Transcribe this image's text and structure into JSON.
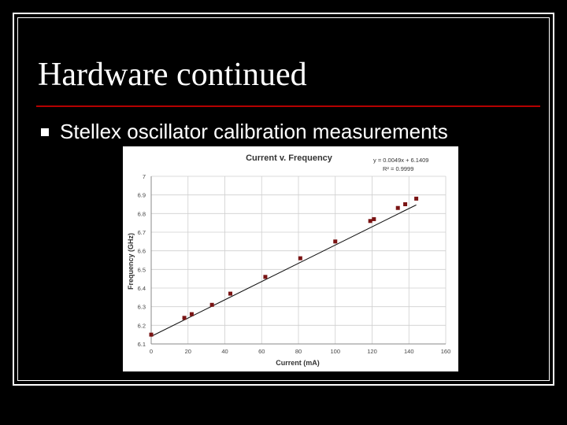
{
  "slide": {
    "title": "Hardware continued",
    "bullet": "Stellex oscillator calibration measurements",
    "accent_color": "#b40000"
  },
  "chart_data": {
    "type": "scatter",
    "title": "Current v. Frequency",
    "xlabel": "Current (mA)",
    "ylabel": "Frequency (GHz)",
    "xlim": [
      0,
      160
    ],
    "ylim": [
      6.1,
      7.0
    ],
    "xticks": [
      0,
      20,
      40,
      60,
      80,
      100,
      120,
      140,
      160
    ],
    "yticks": [
      6.1,
      6.2,
      6.3,
      6.4,
      6.5,
      6.6,
      6.7,
      6.8,
      6.9,
      7.0
    ],
    "grid": true,
    "trendline": {
      "equation": "y = 0.0049x + 6.1409",
      "r_squared": "R² = 0.9999",
      "slope": 0.0049,
      "intercept": 6.1409
    },
    "series": [
      {
        "marker_color": "#7a1414",
        "x": [
          0,
          18,
          22,
          33,
          43,
          62,
          81,
          100,
          119,
          121,
          134,
          138,
          144
        ],
        "y": [
          6.15,
          6.24,
          6.26,
          6.31,
          6.37,
          6.46,
          6.56,
          6.65,
          6.76,
          6.77,
          6.83,
          6.85,
          6.88
        ]
      }
    ]
  }
}
